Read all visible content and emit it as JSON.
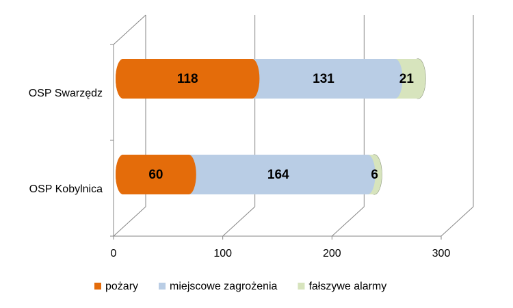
{
  "chart_data": {
    "type": "bar3d-stacked-horizontal",
    "categories": [
      "OSP Swarzędz",
      "OSP Kobylnica"
    ],
    "series": [
      {
        "name": "pożary",
        "color": "#e46c0a",
        "values": [
          118,
          60
        ]
      },
      {
        "name": "miejscowe zagrożenia",
        "color": "#b9cde5",
        "values": [
          131,
          164
        ]
      },
      {
        "name": "fałszywe alarmy",
        "color": "#d7e4bd",
        "values": [
          21,
          6
        ]
      }
    ],
    "xlim": [
      0,
      300
    ],
    "xticks": [
      0,
      100,
      200,
      300
    ],
    "grid": true
  }
}
